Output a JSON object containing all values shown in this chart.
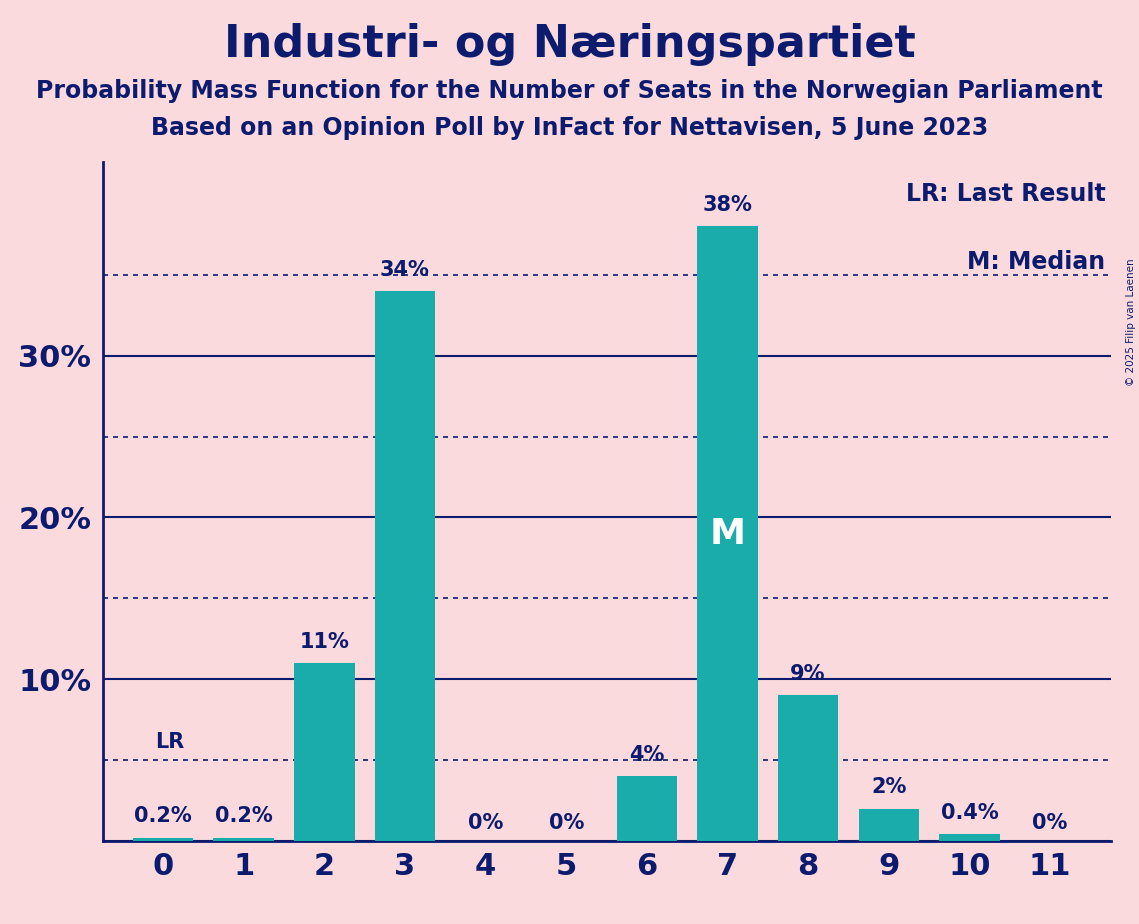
{
  "title": "Industri- og Næringspartiet",
  "subtitle1": "Probability Mass Function for the Number of Seats in the Norwegian Parliament",
  "subtitle2": "Based on an Opinion Poll by InFact for Nettavisen, 5 June 2023",
  "copyright": "© 2025 Filip van Laenen",
  "categories": [
    0,
    1,
    2,
    3,
    4,
    5,
    6,
    7,
    8,
    9,
    10,
    11
  ],
  "values": [
    0.2,
    0.2,
    11,
    34,
    0,
    0,
    4,
    38,
    9,
    2,
    0.4,
    0
  ],
  "bar_color": "#1aabab",
  "background_color": "#fadadd",
  "text_color": "#0d1b6e",
  "median_seat": 7,
  "lr_seat": 0,
  "lr_label": "LR",
  "median_label": "M",
  "legend_lr": "LR: Last Result",
  "legend_m": "M: Median",
  "yticks": [
    0,
    10,
    20,
    30
  ],
  "ytick_labels": [
    "",
    "10%",
    "20%",
    "30%"
  ],
  "ymax": 42,
  "dotted_grid_values": [
    5,
    15,
    25,
    35
  ],
  "bar_labels": [
    "0.2%",
    "0.2%",
    "11%",
    "34%",
    "0%",
    "0%",
    "4%",
    "38%",
    "9%",
    "2%",
    "0.4%",
    "0%"
  ],
  "show_label": [
    true,
    true,
    true,
    true,
    true,
    true,
    true,
    true,
    true,
    true,
    true,
    true
  ]
}
